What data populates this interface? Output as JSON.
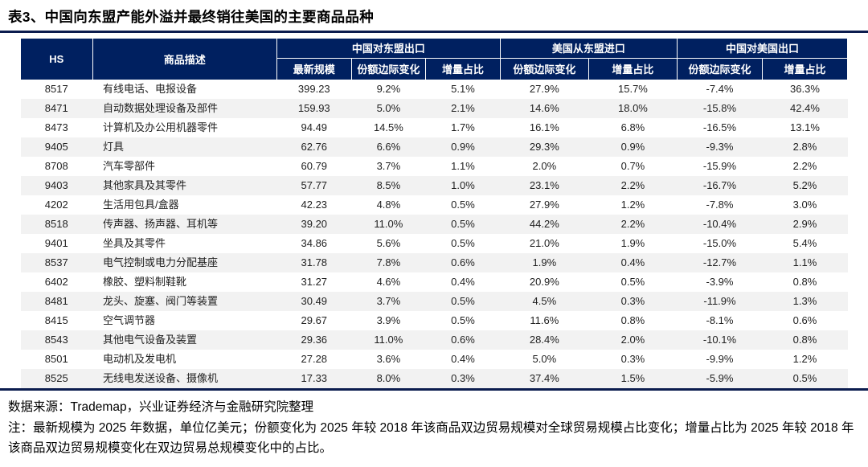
{
  "title": "表3、中国向东盟产能外溢并最终销往美国的主要商品品种",
  "table": {
    "hs_label": "HS",
    "desc_label": "商品描述",
    "groups": [
      {
        "label": "中国对东盟出口",
        "cols": [
          "最新规模",
          "份额边际变化",
          "增量占比"
        ]
      },
      {
        "label": "美国从东盟进口",
        "cols": [
          "份额边际变化",
          "增量占比"
        ]
      },
      {
        "label": "中国对美国出口",
        "cols": [
          "份额边际变化",
          "增量占比"
        ]
      }
    ],
    "rows": [
      {
        "hs": "8517",
        "desc": "有线电话、电报设备",
        "values": [
          "399.23",
          "9.2%",
          "5.1%",
          "27.9%",
          "15.7%",
          "-7.4%",
          "36.3%"
        ]
      },
      {
        "hs": "8471",
        "desc": "自动数据处理设备及部件",
        "values": [
          "159.93",
          "5.0%",
          "2.1%",
          "14.6%",
          "18.0%",
          "-15.8%",
          "42.4%"
        ]
      },
      {
        "hs": "8473",
        "desc": "计算机及办公用机器零件",
        "values": [
          "94.49",
          "14.5%",
          "1.7%",
          "16.1%",
          "6.8%",
          "-16.5%",
          "13.1%"
        ]
      },
      {
        "hs": "9405",
        "desc": "灯具",
        "values": [
          "62.76",
          "6.6%",
          "0.9%",
          "29.3%",
          "0.9%",
          "-9.3%",
          "2.8%"
        ]
      },
      {
        "hs": "8708",
        "desc": "汽车零部件",
        "values": [
          "60.79",
          "3.7%",
          "1.1%",
          "2.0%",
          "0.7%",
          "-15.9%",
          "2.2%"
        ]
      },
      {
        "hs": "9403",
        "desc": "其他家具及其零件",
        "values": [
          "57.77",
          "8.5%",
          "1.0%",
          "23.1%",
          "2.2%",
          "-16.7%",
          "5.2%"
        ]
      },
      {
        "hs": "4202",
        "desc": "生活用包具/盒器",
        "values": [
          "42.23",
          "4.8%",
          "0.5%",
          "27.9%",
          "1.2%",
          "-7.8%",
          "3.0%"
        ]
      },
      {
        "hs": "8518",
        "desc": "传声器、扬声器、耳机等",
        "values": [
          "39.20",
          "11.0%",
          "0.5%",
          "44.2%",
          "2.2%",
          "-10.4%",
          "2.9%"
        ]
      },
      {
        "hs": "9401",
        "desc": "坐具及其零件",
        "values": [
          "34.86",
          "5.6%",
          "0.5%",
          "21.0%",
          "1.9%",
          "-15.0%",
          "5.4%"
        ]
      },
      {
        "hs": "8537",
        "desc": "电气控制或电力分配基座",
        "values": [
          "31.78",
          "7.8%",
          "0.6%",
          "1.9%",
          "0.4%",
          "-12.7%",
          "1.1%"
        ]
      },
      {
        "hs": "6402",
        "desc": "橡胶、塑料制鞋靴",
        "values": [
          "31.27",
          "4.6%",
          "0.4%",
          "20.9%",
          "0.5%",
          "-3.9%",
          "0.8%"
        ]
      },
      {
        "hs": "8481",
        "desc": "龙头、旋塞、阀门等装置",
        "values": [
          "30.49",
          "3.7%",
          "0.5%",
          "4.5%",
          "0.3%",
          "-11.9%",
          "1.3%"
        ]
      },
      {
        "hs": "8415",
        "desc": "空气调节器",
        "values": [
          "29.67",
          "3.9%",
          "0.5%",
          "11.6%",
          "0.8%",
          "-8.1%",
          "0.6%"
        ]
      },
      {
        "hs": "8543",
        "desc": "其他电气设备及装置",
        "values": [
          "29.36",
          "11.0%",
          "0.6%",
          "28.4%",
          "2.0%",
          "-10.1%",
          "0.8%"
        ]
      },
      {
        "hs": "8501",
        "desc": "电动机及发电机",
        "values": [
          "27.28",
          "3.6%",
          "0.4%",
          "5.0%",
          "0.3%",
          "-9.9%",
          "1.2%"
        ]
      },
      {
        "hs": "8525",
        "desc": "无线电发送设备、摄像机",
        "values": [
          "17.33",
          "8.0%",
          "0.3%",
          "37.4%",
          "1.5%",
          "-5.9%",
          "0.5%"
        ]
      }
    ]
  },
  "footer": {
    "source": "数据来源：Trademap，兴业证券经济与金融研究院整理",
    "note": "注：最新规模为 2025 年数据，单位亿美元；份额变化为 2025 年较 2018 年该商品双边贸易规模对全球贸易规模占比变化；增量占比为 2025 年较 2018 年该商品双边贸易规模变化在双边贸易总规模变化中的占比。"
  },
  "colors": {
    "header_bg": "#002060",
    "header_text": "#ffffff",
    "stripe": "#f2f2f2",
    "rule": "#0b1c4e"
  }
}
